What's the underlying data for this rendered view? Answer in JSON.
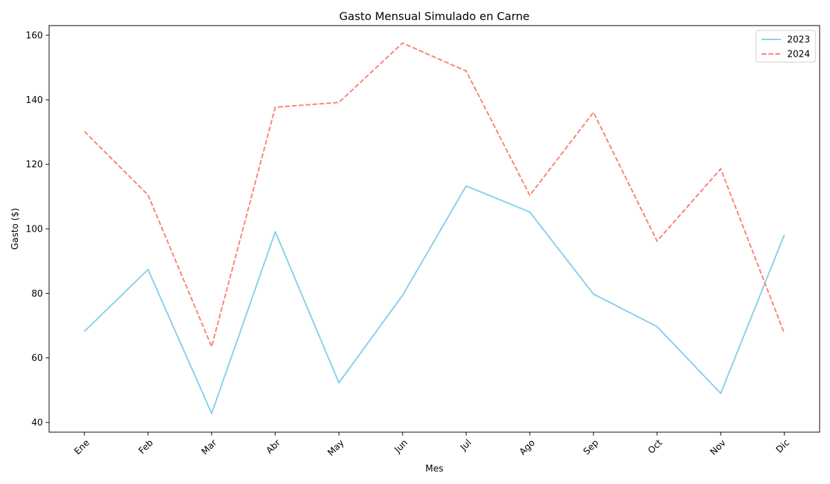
{
  "chart_data": {
    "type": "line",
    "title": "Gasto Mensual Simulado en Carne",
    "xlabel": "Mes",
    "ylabel": "Gasto ($)",
    "categories": [
      "Ene",
      "Feb",
      "Mar",
      "Abr",
      "May",
      "Jun",
      "Jul",
      "Ago",
      "Sep",
      "Oct",
      "Nov",
      "Dic"
    ],
    "ylim": [
      37,
      163
    ],
    "yticks": [
      40,
      60,
      80,
      100,
      120,
      140,
      160
    ],
    "grid": false,
    "legend": "top-right",
    "series": [
      {
        "name": "2023",
        "color": "#87ceeb",
        "dash": "solid",
        "values": [
          68.2,
          87.4,
          42.8,
          99.1,
          52.3,
          79.4,
          113.3,
          105.2,
          79.8,
          69.7,
          49.0,
          98.2
        ]
      },
      {
        "name": "2024",
        "color": "#fa8072",
        "dash": "dashed",
        "values": [
          130.2,
          110.5,
          63.5,
          137.7,
          139.2,
          157.6,
          148.9,
          110.4,
          136.1,
          96.2,
          118.6,
          67.6
        ]
      }
    ]
  }
}
